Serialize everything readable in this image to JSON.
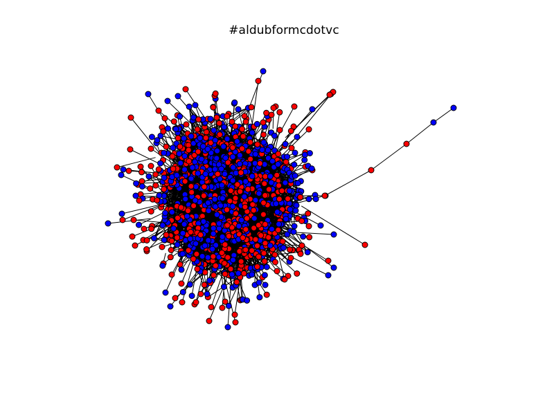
{
  "figure": {
    "title": "#aldubformcdotvc"
  },
  "graph": {
    "type": "network",
    "node_colors": {
      "red": "#ff0000",
      "blue": "#0000ff"
    },
    "edge_color": "#000000",
    "node_outline_color": "#000000",
    "background": "#ffffff"
  }
}
